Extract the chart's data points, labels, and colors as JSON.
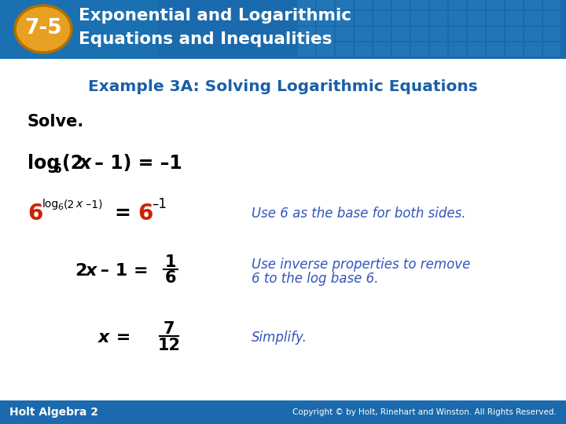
{
  "header_bg_color": "#1a6aad",
  "badge_bg": "#e8a020",
  "badge_text": "7-5",
  "header_line1": "Exponential and Logarithmic",
  "header_line2": "Equations and Inequalities",
  "example_title": "Example 3A: Solving Logarithmic Equations",
  "example_title_color": "#1a5fa8",
  "body_bg": "#ffffff",
  "footer_left": "Holt Algebra 2",
  "footer_right": "Copyright © by Holt, Rinehart and Winston. All Rights Reserved.",
  "annotation_color": "#3355bb",
  "red_color": "#cc2200",
  "black": "#000000",
  "white": "#ffffff"
}
